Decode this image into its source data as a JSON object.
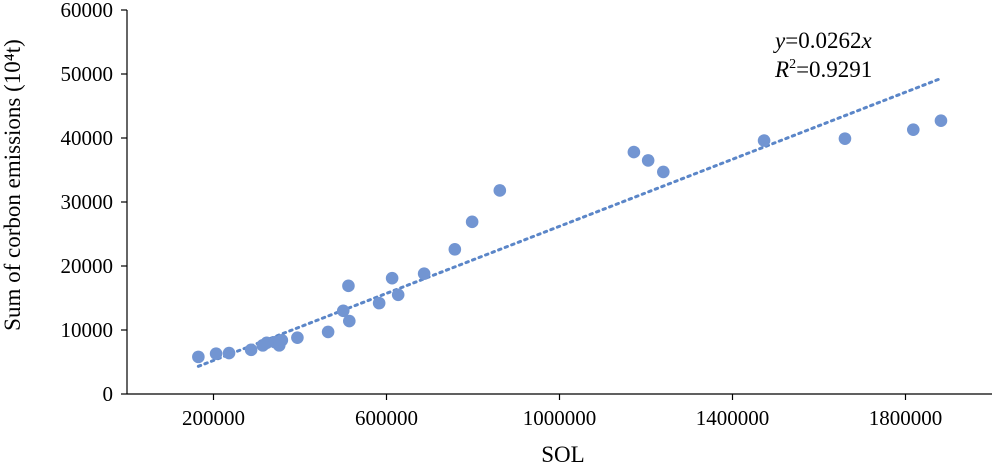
{
  "chart_data": {
    "type": "scatter",
    "xlabel": "SOL",
    "ylabel": "Sum of corbon emissions (10⁴t)",
    "xlim": [
      0,
      2000000
    ],
    "ylim": [
      0,
      60000
    ],
    "x_ticks": [
      {
        "value": 200000,
        "label": "200000"
      },
      {
        "value": 600000,
        "label": "600000"
      },
      {
        "value": 1000000,
        "label": "1000000"
      },
      {
        "value": 1400000,
        "label": "1400000"
      },
      {
        "value": 1800000,
        "label": "1800000"
      }
    ],
    "y_ticks": [
      {
        "value": 0,
        "label": "0"
      },
      {
        "value": 10000,
        "label": "10000"
      },
      {
        "value": 20000,
        "label": "20000"
      },
      {
        "value": 30000,
        "label": "30000"
      },
      {
        "value": 40000,
        "label": "40000"
      },
      {
        "value": 50000,
        "label": "50000"
      },
      {
        "value": 60000,
        "label": "60000"
      }
    ],
    "grid": false,
    "point_color": "#7295d2",
    "trendline_color": "#5b86c8",
    "points": [
      {
        "x": 165000,
        "y": 5800
      },
      {
        "x": 206000,
        "y": 6300
      },
      {
        "x": 236000,
        "y": 6400
      },
      {
        "x": 287000,
        "y": 6900
      },
      {
        "x": 314000,
        "y": 7600
      },
      {
        "x": 323000,
        "y": 8000
      },
      {
        "x": 342000,
        "y": 8100
      },
      {
        "x": 352000,
        "y": 7600
      },
      {
        "x": 358000,
        "y": 8400
      },
      {
        "x": 394000,
        "y": 8800
      },
      {
        "x": 465000,
        "y": 9700
      },
      {
        "x": 500000,
        "y": 13000
      },
      {
        "x": 514000,
        "y": 11400
      },
      {
        "x": 512000,
        "y": 16900
      },
      {
        "x": 583000,
        "y": 14200
      },
      {
        "x": 613000,
        "y": 18100
      },
      {
        "x": 627000,
        "y": 15500
      },
      {
        "x": 687000,
        "y": 18800
      },
      {
        "x": 758000,
        "y": 22600
      },
      {
        "x": 798000,
        "y": 26900
      },
      {
        "x": 862000,
        "y": 31800
      },
      {
        "x": 1172000,
        "y": 37800
      },
      {
        "x": 1205000,
        "y": 36500
      },
      {
        "x": 1240000,
        "y": 34700
      },
      {
        "x": 1473000,
        "y": 39600
      },
      {
        "x": 1660000,
        "y": 39900
      },
      {
        "x": 1818000,
        "y": 41300
      },
      {
        "x": 1882000,
        "y": 42700
      }
    ],
    "trendline": {
      "slope": 0.0262,
      "x_start": 165000,
      "x_end": 1882000
    },
    "annotation": {
      "equation_y": "y",
      "equation_mid": "=0.0262",
      "equation_x": "x",
      "r2_r": "R",
      "r2_sup": "2",
      "r2_value": "=0.9291"
    }
  }
}
